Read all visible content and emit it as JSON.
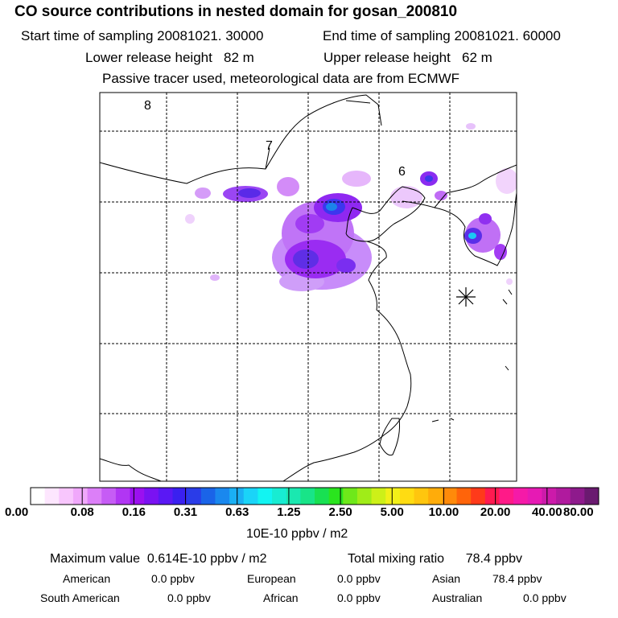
{
  "title": "CO  source contributions in nested domain for gosan_200810",
  "header": {
    "start_label": "Start time of sampling",
    "start_value": "20081021. 30000",
    "end_label": "End time of sampling",
    "end_value": "20081021. 60000",
    "lower_label": "Lower release height",
    "lower_value": "82 m",
    "upper_label": "Upper release height",
    "upper_value": "62 m",
    "tracer_note": "Passive tracer used, meteorological data are from ECMWF"
  },
  "map": {
    "contour_labels": [
      "8",
      "7",
      "6"
    ],
    "grid_style": "dashed",
    "receptor_marker": "asterisk-receptor"
  },
  "colorbar": {
    "unit": "10E-10 ppbv / m2",
    "tick_labels": [
      "0.00",
      "0.08",
      "0.16",
      "0.31",
      "0.63",
      "1.25",
      "2.50",
      "5.00",
      "10.00",
      "20.00",
      "40.00",
      "80.00"
    ],
    "colors": [
      "#ffffff",
      "#fde6fe",
      "#f8c6fd",
      "#f0a8fb",
      "#dc7ff8",
      "#c65cf5",
      "#b136f3",
      "#9b10f0",
      "#7a12f2",
      "#5a18f4",
      "#3a20f0",
      "#2a3ce8",
      "#1a64e8",
      "#1a88ee",
      "#1ab0f4",
      "#1ad4f8",
      "#12f4f2",
      "#18ecd2",
      "#1ae8b0",
      "#18e488",
      "#18e052",
      "#2ae41e",
      "#6ee81a",
      "#a0ec18",
      "#cdf018",
      "#f2f018",
      "#ffdc12",
      "#ffc60e",
      "#ffac0a",
      "#ff8a0a",
      "#ff640a",
      "#ff3a1a",
      "#ff1a50",
      "#ff1a88",
      "#f51aa8",
      "#e61ab4",
      "#cc1aaa",
      "#b01a9e",
      "#8e1a8c",
      "#6a1a70"
    ]
  },
  "stats": {
    "max_label": "Maximum value",
    "max_value": "0.614E-10 ppbv / m2",
    "total_label": "Total mixing ratio",
    "total_value": "78.4 ppbv"
  },
  "regions": [
    {
      "name": "American",
      "value": "0.0 ppbv"
    },
    {
      "name": "European",
      "value": "0.0 ppbv"
    },
    {
      "name": "Asian",
      "value": "78.4 ppbv"
    },
    {
      "name": "South American",
      "value": "0.0 ppbv"
    },
    {
      "name": "African",
      "value": "0.0 ppbv"
    },
    {
      "name": "Australian",
      "value": "0.0 ppbv"
    }
  ]
}
